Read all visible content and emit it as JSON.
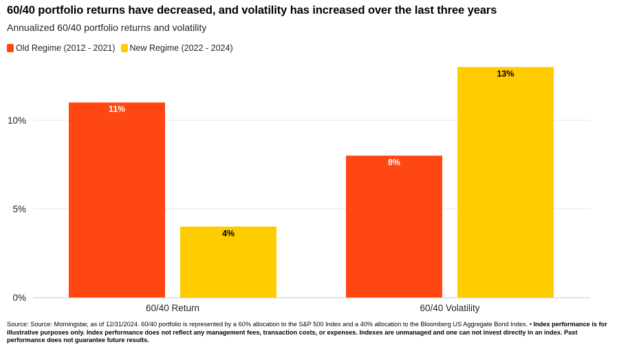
{
  "title": "60/40 portfolio returns have decreased, and volatility has increased over the last three years",
  "subtitle": "Annualized 60/40 portfolio returns and volatility",
  "colors": {
    "old": "#ff4713",
    "new": "#ffcc00",
    "grid": "#e6e6e6",
    "axis": "#cccccc"
  },
  "chart_data": {
    "type": "bar",
    "title": "60/40 portfolio returns have decreased, and volatility has increased over the last three years",
    "subtitle": "Annualized 60/40 portfolio returns and volatility",
    "categories": [
      "60/40 Return",
      "60/40 Volatility"
    ],
    "series": [
      {
        "name": "Old Regime (2012 - 2021)",
        "values": [
          11,
          8
        ],
        "labels": [
          "11%",
          "8%"
        ]
      },
      {
        "name": "New Regime (2022 - 2024)",
        "values": [
          4,
          13
        ],
        "labels": [
          "4%",
          "13%"
        ]
      }
    ],
    "yticks": [
      0,
      5,
      10
    ],
    "ytick_labels": [
      "0%",
      "5%",
      "10%"
    ],
    "ylim": [
      0,
      13.5
    ],
    "xlabel": "",
    "ylabel": "",
    "grid": true,
    "legend": "top-left"
  },
  "footnote": {
    "plain": "Source: Source: Morningstar, as of 12/31/2024. 60/40 portfolio is represented by a 60% allocation to the S&P 500 Index and a 40% allocation to the Bloomberg US Aggregate Bond Index. • ",
    "bold": "Index performance is for illustrative purposes only. Index performance does not reflect any management fees, transaction costs, or expenses. Indexes are unmanaged and one can not invest directly in an index. Past performance does not guarantee future results."
  }
}
